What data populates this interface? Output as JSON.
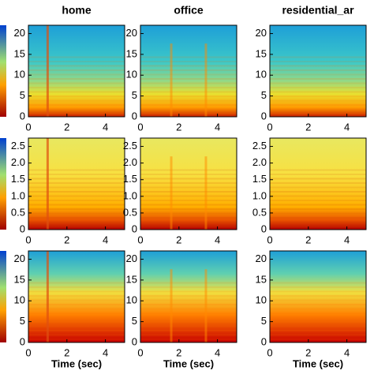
{
  "chart_data": [
    {
      "type": "spectrogram",
      "title": "home",
      "xlim": [
        0,
        5
      ],
      "xticks": [
        0,
        2,
        4
      ],
      "ylim": [
        0,
        22
      ],
      "yticks": [
        0,
        5,
        10,
        15,
        20
      ]
    },
    {
      "type": "spectrogram",
      "title": "office",
      "xlim": [
        0,
        5
      ],
      "xticks": [
        0,
        2,
        4
      ],
      "ylim": [
        0,
        22
      ],
      "yticks": [
        0,
        5,
        10,
        15,
        20
      ]
    },
    {
      "type": "spectrogram",
      "title": "residential_ar",
      "xlim": [
        0,
        5
      ],
      "xticks": [
        0,
        2,
        4
      ],
      "ylim": [
        0,
        22
      ],
      "yticks": [
        0,
        5,
        10,
        15,
        20
      ]
    },
    {
      "type": "spectrogram",
      "xlim": [
        0,
        5
      ],
      "xticks": [
        0,
        2,
        4
      ],
      "ylim": [
        0,
        2.75
      ],
      "yticks": [
        0,
        0.5,
        {
          "value": 1,
          "label": "1.0"
        },
        1.5,
        {
          "value": 2,
          "label": "2.0"
        },
        2.5
      ]
    },
    {
      "type": "spectrogram",
      "xlim": [
        0,
        5
      ],
      "xticks": [
        0,
        2,
        4
      ],
      "ylim": [
        0,
        2.75
      ],
      "yticks": [
        0,
        0.5,
        {
          "value": 1,
          "label": "1.0"
        },
        1.5,
        {
          "value": 2,
          "label": "2.0"
        },
        2.5
      ]
    },
    {
      "type": "spectrogram",
      "xlim": [
        0,
        5
      ],
      "xticks": [
        0,
        2,
        4
      ],
      "ylim": [
        0,
        2.75
      ],
      "yticks": [
        0,
        0.5,
        {
          "value": 1,
          "label": "1.0"
        },
        1.5,
        {
          "value": 2,
          "label": "2.0"
        },
        2.5
      ]
    },
    {
      "type": "spectrogram",
      "xlabel": "Time (sec)",
      "xlim": [
        0,
        5
      ],
      "xticks": [
        0,
        2,
        4
      ],
      "ylim": [
        0,
        22
      ],
      "yticks": [
        0,
        5,
        10,
        15,
        20
      ]
    },
    {
      "type": "spectrogram",
      "xlabel": "Time (sec)",
      "xlim": [
        0,
        5
      ],
      "xticks": [
        0,
        2,
        4
      ],
      "ylim": [
        0,
        22
      ],
      "yticks": [
        0,
        5,
        10,
        15,
        20
      ]
    },
    {
      "type": "spectrogram",
      "xlabel": "Time (sec)",
      "xlim": [
        0,
        5
      ],
      "xticks": [
        0,
        2,
        4
      ],
      "ylim": [
        0,
        22
      ],
      "yticks": [
        0,
        5,
        10,
        15,
        20
      ]
    }
  ]
}
